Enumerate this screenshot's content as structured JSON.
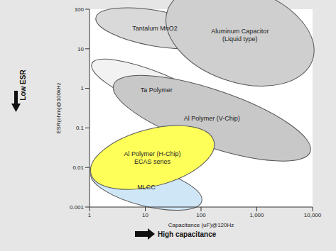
{
  "chart_data": {
    "type": "region",
    "xlabel": "Capacitance (uF)@120Hz",
    "ylabel": "ESR(ohm)@100kHz",
    "annotations": [
      "Low ESR",
      "High capacitance"
    ],
    "log": true,
    "grid": false,
    "xlim": [
      1,
      10000
    ],
    "xticks": [
      1,
      10,
      100,
      {
        "value": 1000,
        "label": "1,000"
      },
      {
        "value": 10000,
        "label": "10,000"
      }
    ],
    "ylim": [
      0.001,
      100
    ],
    "yticks": [
      0.001,
      0.01,
      0.1,
      1,
      10,
      100
    ],
    "series": [
      {
        "name": [
          "Tantalum MnO2"
        ],
        "color": "#d9d9d9",
        "ends": [
          [
            1.3,
            61
          ],
          [
            170,
            18
          ]
        ],
        "side": [
          12.9,
          12
        ]
      },
      {
        "name": [
          "Aluminum Capacitor",
          "(Liquid type)"
        ],
        "color": "#cfcfcf",
        "ends": [
          [
            25,
            92
          ],
          [
            10000,
            5.2
          ]
        ],
        "side": [
          85,
          7.3
        ]
      },
      {
        "name": [
          "Ta Polymer"
        ],
        "color": "#f2f2f2",
        "ends": [
          [
            1.1,
            4.2
          ],
          [
            230,
            0.19
          ]
        ],
        "side": [
          12,
          0.35
        ]
      },
      {
        "name": [
          "Al Polymer (V-Chip)"
        ],
        "color": "#c8c8c8",
        "ends": [
          [
            2.7,
            1.23
          ],
          [
            9100,
            0.025
          ]
        ],
        "side": [
          107,
          0.037
        ]
      },
      {
        "name": [
          "MLCC"
        ],
        "color": "#cfe6f7",
        "ends": [
          [
            1.06,
            0.0072
          ],
          [
            103,
            0.0014
          ]
        ],
        "side": [
          8.6,
          0.0011
        ]
      },
      {
        "name": [
          "Al Polymer (H-Chip)",
          "ECAS series"
        ],
        "color": "#ffff5a",
        "ends": [
          [
            1.06,
            0.0069
          ],
          [
            170,
            0.046
          ]
        ],
        "side": [
          18,
          0.0036
        ]
      }
    ]
  }
}
